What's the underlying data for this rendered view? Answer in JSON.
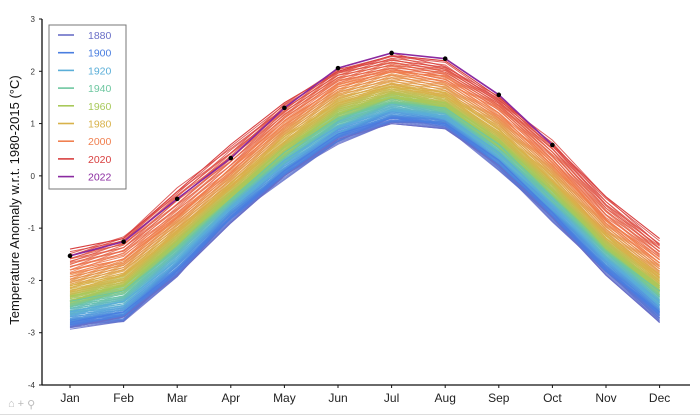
{
  "chart_data": {
    "type": "line",
    "title": "",
    "xlabel": "",
    "ylabel": "Temperature Anomaly w.r.t. 1980-2015 (°C)",
    "ylim": [
      -4,
      3
    ],
    "yticks": [
      "3",
      "2",
      "1",
      "0",
      "-1",
      "-2",
      "-3",
      "-4"
    ],
    "yticks_values": [
      3,
      2,
      1,
      0,
      -1,
      -2,
      -3,
      -4
    ],
    "categories": [
      "Jan",
      "Feb",
      "Mar",
      "Apr",
      "May",
      "Jun",
      "Jul",
      "Aug",
      "Sep",
      "Oct",
      "Nov",
      "Dec"
    ],
    "legend_placement": "top-left",
    "grid": false,
    "series": [
      {
        "name": "1880",
        "color": "#6a6fc7",
        "values": [
          -2.9,
          -2.7,
          -1.9,
          -0.9,
          0.0,
          0.7,
          1.0,
          0.9,
          0.2,
          -0.8,
          -1.9,
          -2.8
        ]
      },
      {
        "name": "1900",
        "color": "#4a7ee0",
        "values": [
          -2.8,
          -2.6,
          -1.8,
          -0.8,
          0.1,
          0.8,
          1.1,
          1.0,
          0.3,
          -0.7,
          -1.8,
          -2.6
        ]
      },
      {
        "name": "1920",
        "color": "#5aaed8",
        "values": [
          -2.6,
          -2.4,
          -1.6,
          -0.6,
          0.3,
          0.95,
          1.25,
          1.15,
          0.45,
          -0.55,
          -1.6,
          -2.4
        ]
      },
      {
        "name": "1940",
        "color": "#6ec7a0",
        "values": [
          -2.4,
          -2.2,
          -1.4,
          -0.45,
          0.45,
          1.1,
          1.4,
          1.3,
          0.6,
          -0.4,
          -1.45,
          -2.2
        ]
      },
      {
        "name": "1960",
        "color": "#a8c95a",
        "values": [
          -2.3,
          -2.1,
          -1.3,
          -0.35,
          0.55,
          1.2,
          1.5,
          1.4,
          0.7,
          -0.3,
          -1.35,
          -2.1
        ]
      },
      {
        "name": "1980",
        "color": "#d8b24a",
        "values": [
          -2.1,
          -1.9,
          -1.1,
          -0.15,
          0.75,
          1.4,
          1.7,
          1.6,
          0.9,
          -0.1,
          -1.15,
          -1.9
        ]
      },
      {
        "name": "2000",
        "color": "#f08050",
        "values": [
          -1.8,
          -1.6,
          -0.8,
          0.15,
          1.05,
          1.7,
          2.0,
          1.9,
          1.2,
          0.2,
          -0.85,
          -1.6
        ]
      },
      {
        "name": "2020",
        "color": "#d84040",
        "values": [
          -1.4,
          -1.2,
          -0.3,
          0.6,
          1.4,
          2.0,
          2.3,
          2.2,
          1.5,
          0.6,
          -0.4,
          -1.2
        ]
      },
      {
        "name": "2022",
        "color": "#8a2aa0",
        "values": [
          -1.53,
          -1.26,
          -0.44,
          0.34,
          1.3,
          2.06,
          2.35,
          2.24,
          1.55,
          0.59,
          null,
          null
        ]
      }
    ]
  },
  "toolbar": {
    "home": "⌂",
    "pan": "+",
    "zoom": "⚲"
  }
}
